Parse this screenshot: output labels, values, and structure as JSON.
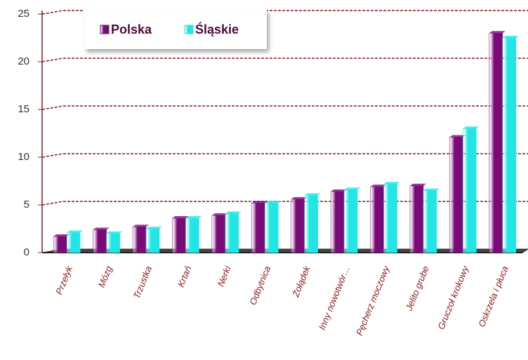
{
  "chart_data": {
    "type": "bar",
    "categories": [
      "Przełyk",
      "Mózg",
      "Trzustka",
      "Krtań",
      "Nerki",
      "Odbytnica",
      "Żołądek",
      "Inny nowotwór…",
      "Pęcherz moczowy",
      "Jelito grube",
      "Gruczoł krokowy",
      "Oskrzela i płuca"
    ],
    "series": [
      {
        "name": "Polska",
        "color": "#7a0a78",
        "values": [
          1.7,
          2.4,
          2.7,
          3.6,
          3.9,
          5.2,
          5.6,
          6.4,
          6.9,
          7.0,
          12.1,
          23.0
        ]
      },
      {
        "name": "Śląskie",
        "color": "#22e6e6",
        "values": [
          2.1,
          2.0,
          2.5,
          3.6,
          4.1,
          5.2,
          6.0,
          6.6,
          7.2,
          6.5,
          13.0,
          22.5
        ]
      }
    ],
    "ylim": [
      0,
      25
    ],
    "yticks": [
      0,
      5,
      10,
      15,
      20,
      25
    ],
    "grid": true,
    "legend": "top-left"
  }
}
